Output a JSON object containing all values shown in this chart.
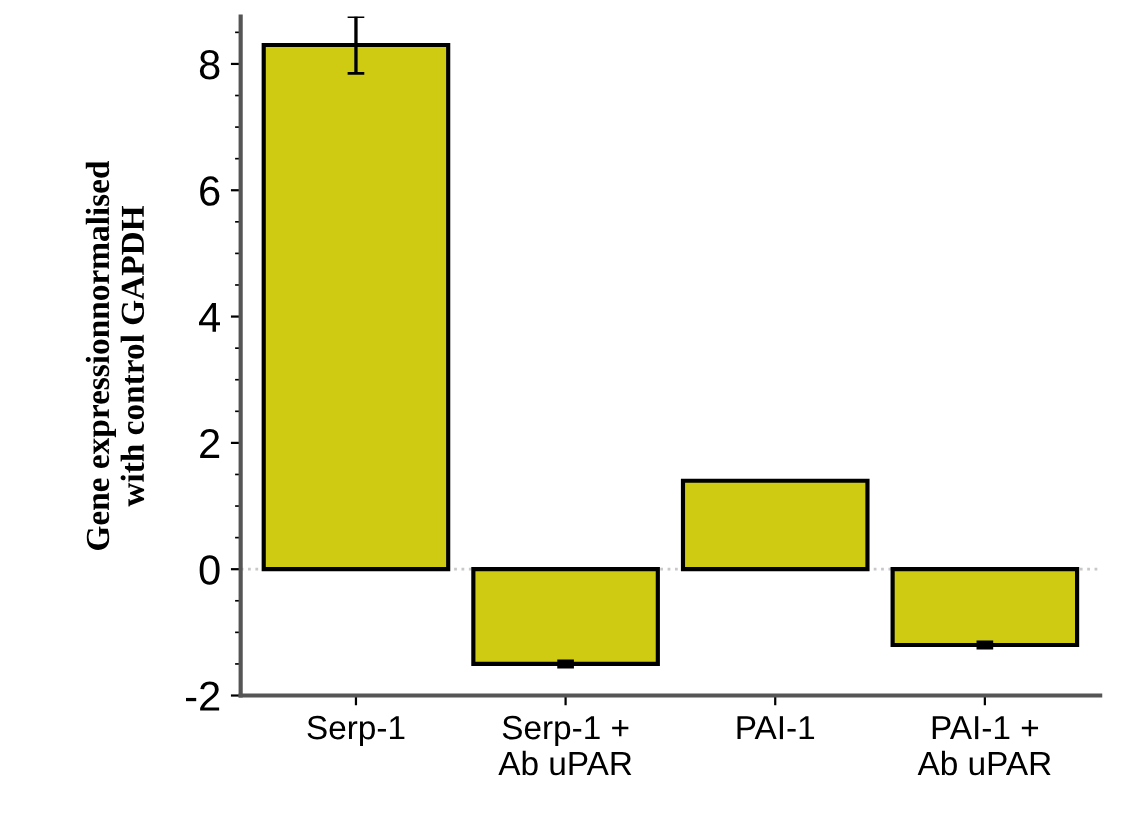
{
  "chart_data": {
    "type": "bar",
    "categories": [
      "Serp-1",
      "Serp-1 +\nAb uPAR",
      "PAI-1",
      "PAI-1 +\nAb uPAR"
    ],
    "values": [
      8.3,
      -1.5,
      1.4,
      -1.2
    ],
    "errors": [
      0.45,
      0.05,
      null,
      0.05
    ],
    "color": "#cfcb12",
    "ylabel": "Gene expressionnormalised\nwith control GAPDH",
    "ylim": [
      -2,
      8.75
    ],
    "yticks": [
      -2,
      0,
      2,
      4,
      6,
      8
    ],
    "ref_lines": [
      {
        "axis": "y",
        "value": 0,
        "color": "#c8c8c8",
        "line_style": "dotted"
      }
    ],
    "grid": false,
    "legend": false
  }
}
